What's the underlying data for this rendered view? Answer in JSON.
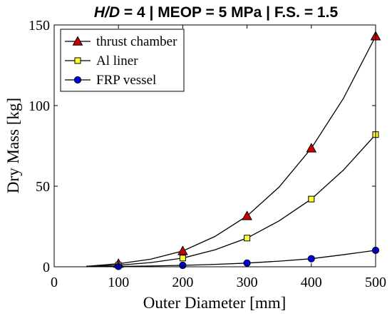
{
  "chart_data": {
    "type": "line",
    "title_parts": [
      {
        "text": "H/D",
        "italic": true
      },
      {
        "text": " = 4 | MEOP = 5 MPa | F.S. = 1.5",
        "italic": false
      }
    ],
    "xlabel": "Outer Diameter [mm]",
    "ylabel": "Dry Mass [kg]",
    "xlim": [
      0,
      500
    ],
    "ylim": [
      0,
      150
    ],
    "xticks": [
      0,
      100,
      200,
      300,
      400,
      500
    ],
    "yticks": [
      0,
      50,
      100,
      150
    ],
    "grid": false,
    "legend_position": "top-left",
    "x": [
      50,
      100,
      150,
      200,
      250,
      300,
      350,
      400,
      450,
      500
    ],
    "marker_x": [
      100,
      200,
      300,
      400,
      500
    ],
    "series": [
      {
        "name": "thrust chamber",
        "marker": "triangle",
        "marker_color": "#cc0000",
        "values": [
          0.3,
          1.9,
          4.7,
          9.8,
          18.8,
          31.5,
          49.5,
          73.5,
          104.5,
          143.0
        ]
      },
      {
        "name": "Al liner",
        "marker": "square",
        "marker_color": "#ffff33",
        "values": [
          0.2,
          1.0,
          2.6,
          5.4,
          10.5,
          17.8,
          28.5,
          42.0,
          60.0,
          82.0
        ]
      },
      {
        "name": "FRP vessel",
        "marker": "circle",
        "marker_color": "#0000ee",
        "values": [
          0.05,
          0.2,
          0.5,
          0.9,
          1.5,
          2.3,
          3.5,
          5.0,
          7.5,
          10.2
        ]
      }
    ]
  }
}
